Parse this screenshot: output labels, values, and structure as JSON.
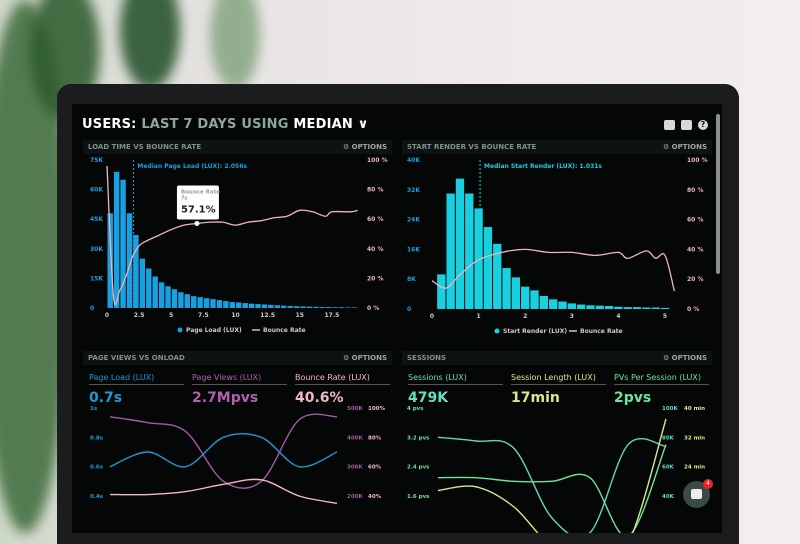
{
  "header": {
    "title_users": "USERS:",
    "title_range": "LAST 7 DAYS",
    "title_using": "USING",
    "title_stat": "MEDIAN",
    "icons": [
      "monitor-icon",
      "share-icon",
      "help-icon"
    ],
    "help_glyph": "?"
  },
  "options_label": "⚙ OPTIONS",
  "panels": [
    {
      "title": "LOAD TIME VS BOUNCE RATE",
      "median_label": "Median Page Load (LUX): 2.056s",
      "tooltip": {
        "title": "Bounce Rate",
        "sub": "7s",
        "value": "57.1%"
      },
      "legend": [
        "Page Load (LUX)",
        "Bounce Rate"
      ]
    },
    {
      "title": "START RENDER VS BOUNCE RATE",
      "median_label": "Median Start Render (LUX): 1.031s",
      "legend": [
        "Start Render (LUX)",
        "Bounce Rate"
      ]
    },
    {
      "title": "PAGE VIEWS VS ONLOAD",
      "kpis": [
        {
          "label": "Page Load (LUX)",
          "value": "0.7s",
          "color": "#1f9ad6"
        },
        {
          "label": "Page Views (LUX)",
          "value": "2.7Mpvs",
          "color": "#b35fb0"
        },
        {
          "label": "Bounce Rate (LUX)",
          "value": "40.6%",
          "color": "#f2b8c6"
        }
      ]
    },
    {
      "title": "SESSIONS",
      "kpis": [
        {
          "label": "Sessions (LUX)",
          "value": "479K",
          "color": "#62e0c0"
        },
        {
          "label": "Session Length (LUX)",
          "value": "17min",
          "color": "#d8e88a"
        },
        {
          "label": "PVs Per Session (LUX)",
          "value": "2pvs",
          "color": "#6fe39a"
        }
      ]
    }
  ],
  "notification_count": "4",
  "chart_data": [
    {
      "type": "bar",
      "title": "LOAD TIME VS BOUNCE RATE",
      "x_ticks": [
        "0",
        "2.5",
        "5",
        "7.5",
        "10",
        "12.5",
        "15",
        "17.5"
      ],
      "y_ticks": [
        "0",
        "15K",
        "30K",
        "45K",
        "60K",
        "75K"
      ],
      "y2_ticks": [
        "0 %",
        "20 %",
        "40 %",
        "60 %",
        "80 %",
        "100 %"
      ],
      "xlim": [
        0,
        20
      ],
      "ylim": [
        0,
        75
      ],
      "y2lim": [
        0,
        100
      ],
      "median": 2.056,
      "bar_x_start": 0,
      "bar_width": 0.5,
      "values": [
        48,
        69,
        65,
        48,
        37,
        25,
        20,
        16,
        13,
        11,
        9.5,
        8,
        7,
        6,
        5.5,
        5,
        4.5,
        4,
        3.5,
        3,
        2.8,
        2.5,
        2.2,
        2,
        1.8,
        1.6,
        1.4,
        1.2,
        1.0,
        0.9,
        0.8,
        0.7,
        0.6,
        0.5,
        0.5,
        0.4,
        0.4,
        0.3,
        0.3
      ],
      "line": [
        [
          0,
          96
        ],
        [
          0.5,
          8
        ],
        [
          1,
          12
        ],
        [
          1.5,
          22
        ],
        [
          2,
          35
        ],
        [
          2.5,
          42
        ],
        [
          3,
          45
        ],
        [
          4,
          49
        ],
        [
          5,
          53
        ],
        [
          6,
          56
        ],
        [
          7,
          57.1
        ],
        [
          8,
          58
        ],
        [
          9,
          58
        ],
        [
          10,
          56
        ],
        [
          11,
          58
        ],
        [
          12,
          59
        ],
        [
          13,
          61
        ],
        [
          14,
          62
        ],
        [
          15,
          66
        ],
        [
          16,
          65
        ],
        [
          17,
          62
        ],
        [
          17.5,
          65
        ],
        [
          19,
          65
        ],
        [
          19.5,
          66
        ]
      ],
      "bar_color": "#1aa0e0",
      "line_color": "#f0b3bf"
    },
    {
      "type": "bar",
      "title": "START RENDER VS BOUNCE RATE",
      "x_ticks": [
        "0",
        "1",
        "2",
        "3",
        "4",
        "5"
      ],
      "y_ticks": [
        "0",
        "8K",
        "16K",
        "24K",
        "32K",
        "40K"
      ],
      "y2_ticks": [
        "0 %",
        "20 %",
        "40 %",
        "60 %",
        "80 %",
        "100 %"
      ],
      "xlim": [
        0,
        5.3
      ],
      "ylim": [
        0,
        40
      ],
      "y2lim": [
        0,
        100
      ],
      "median": 1.031,
      "bar_x_start": 0.1,
      "bar_width": 0.2,
      "values": [
        9.3,
        31,
        35,
        31,
        27,
        22,
        17.5,
        11,
        8.5,
        6,
        5,
        3.5,
        2.6,
        2,
        1.5,
        1.2,
        1,
        0.9,
        0.8,
        0.6,
        0.5,
        0.5,
        0.4,
        0.4,
        0.3
      ],
      "line": [
        [
          0,
          19
        ],
        [
          0.3,
          14
        ],
        [
          0.6,
          23
        ],
        [
          1,
          33
        ],
        [
          1.5,
          38
        ],
        [
          2,
          40
        ],
        [
          2.5,
          38
        ],
        [
          3,
          38
        ],
        [
          3.5,
          36
        ],
        [
          4,
          38
        ],
        [
          4.2,
          34
        ],
        [
          4.6,
          39
        ],
        [
          4.8,
          34
        ],
        [
          5,
          36
        ],
        [
          5.2,
          12
        ]
      ],
      "bar_color": "#19d0e0",
      "line_color": "#f0b3bf"
    },
    {
      "type": "line",
      "y_ticks": [
        "0.4s",
        "0.6s",
        "0.8s",
        "1s"
      ],
      "y2_ticks": [
        "200K",
        "300K",
        "400K",
        "500K"
      ],
      "y3_ticks": [
        "40%",
        "60%",
        "80%",
        "100%"
      ],
      "series": [
        {
          "axis": "left",
          "range": [
            0.4,
            1
          ],
          "values": [
            0.6,
            0.7,
            0.6,
            0.8,
            0.8,
            0.6,
            0.7
          ],
          "color": "#1f9ad6"
        },
        {
          "axis": "right",
          "range": [
            200,
            500
          ],
          "values": [
            470,
            450,
            420,
            250,
            250,
            460,
            470
          ],
          "color": "#a35aa5"
        },
        {
          "axis": "right2",
          "range": [
            40,
            100
          ],
          "values": [
            41,
            41,
            43,
            48,
            51,
            40,
            35
          ],
          "color": "#f2b8c6"
        }
      ]
    },
    {
      "type": "line",
      "y_ticks": [
        "1.6 pvs",
        "2.4 pvs",
        "3.2 pvs",
        "4 pvs"
      ],
      "y2_ticks": [
        "40K",
        "60K",
        "80K",
        "100K"
      ],
      "y3_ticks": [
        "24 min",
        "32 min",
        "40 min"
      ],
      "series": [
        {
          "axis": "left",
          "range": [
            1.6,
            4
          ],
          "values": [
            3.2,
            3.1,
            2.9,
            1.0,
            0.6,
            3.0,
            2.95
          ],
          "color": "#5fd8bd"
        },
        {
          "axis": "left",
          "range": [
            1.6,
            4
          ],
          "values": [
            2.1,
            2.1,
            2.0,
            2.0,
            2.1,
            0.5,
            3.0
          ],
          "color": "#6fe39a"
        },
        {
          "axis": "left",
          "range": [
            1.6,
            4
          ],
          "values": [
            1.75,
            1.85,
            1.3,
            0.2,
            -0.2,
            0.3,
            3.7
          ],
          "color": "#d8e88a"
        }
      ]
    }
  ]
}
